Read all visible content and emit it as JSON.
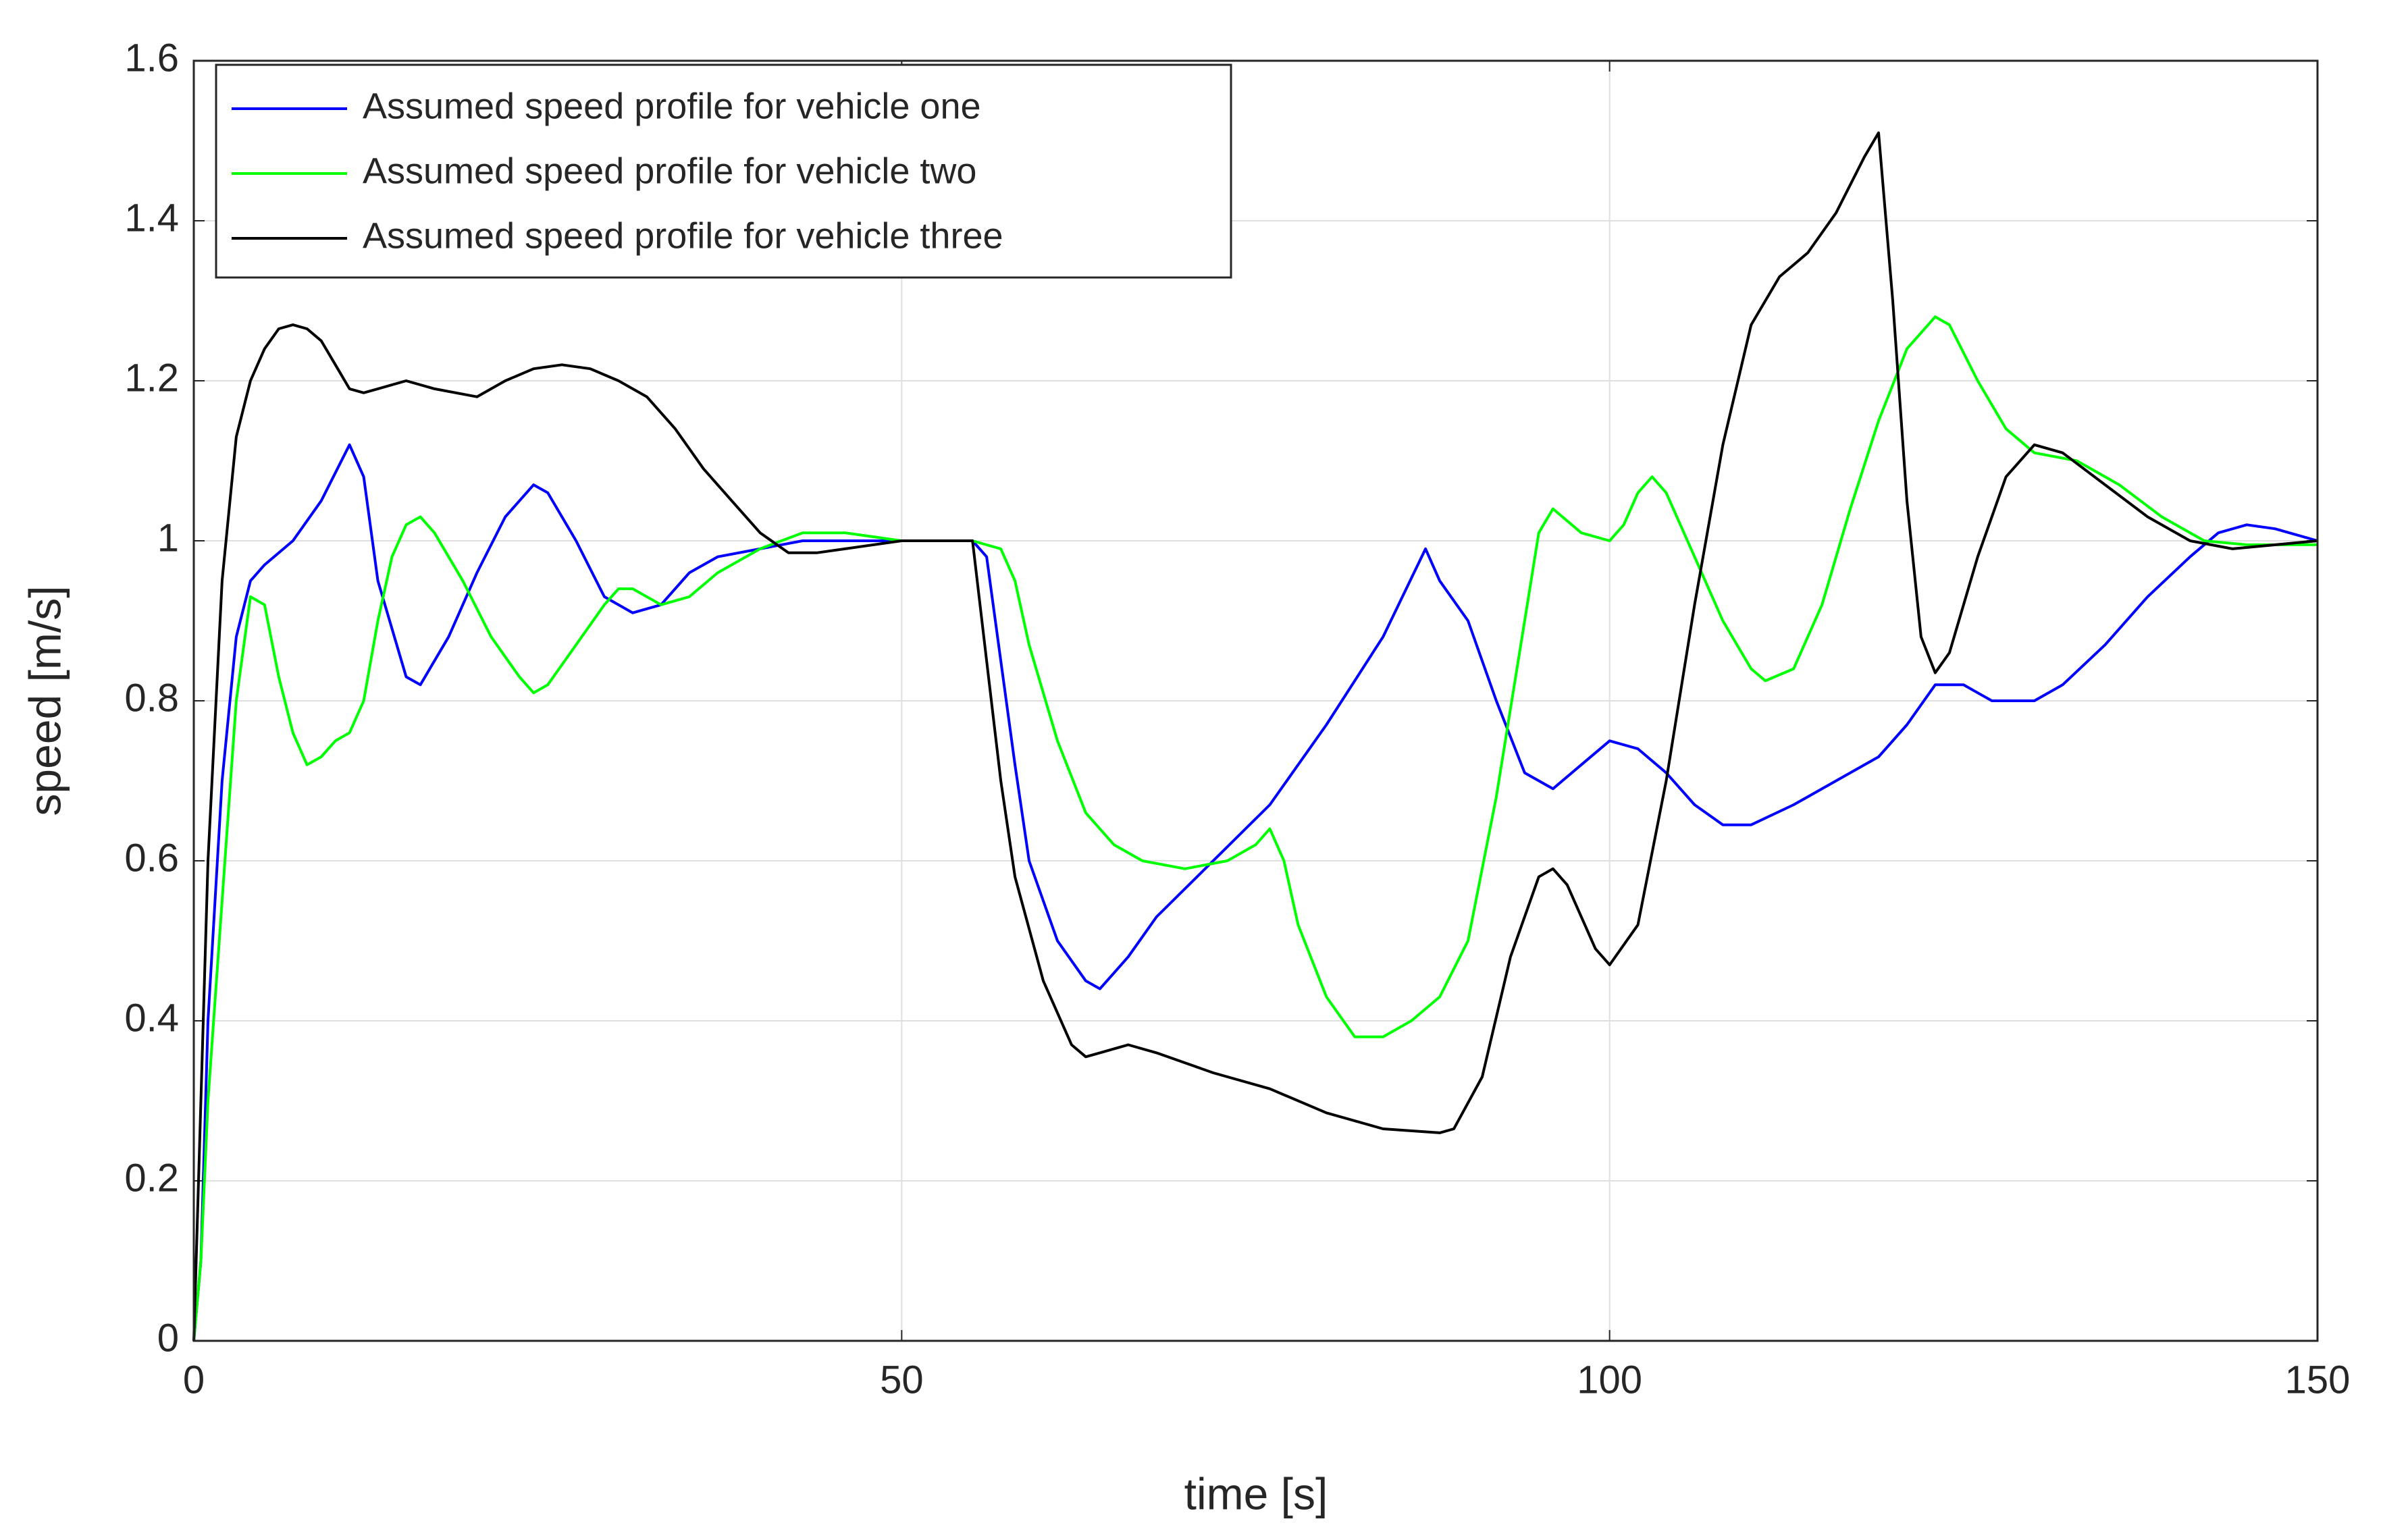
{
  "chart_data": {
    "type": "line",
    "xlabel": "time [s]",
    "ylabel": "speed [m/s]",
    "xlim": [
      0,
      150
    ],
    "ylim": [
      0,
      1.6
    ],
    "xticks": [
      0,
      50,
      100,
      150
    ],
    "yticks": [
      0,
      0.2,
      0.4,
      0.6,
      0.8,
      1,
      1.2,
      1.4,
      1.6
    ],
    "grid": true,
    "legend": "upper left",
    "series": [
      {
        "name": "Assumed speed profile for vehicle one",
        "color": "#0000ff",
        "x": [
          0,
          0.5,
          1,
          2,
          3,
          4,
          5,
          7,
          9,
          11,
          12,
          13,
          15,
          16,
          18,
          20,
          22,
          24,
          25,
          27,
          29,
          31,
          33,
          35,
          37,
          40,
          43,
          46,
          50,
          55,
          56,
          57,
          58,
          59,
          61,
          63,
          64,
          66,
          68,
          72,
          76,
          80,
          84,
          87,
          88,
          90,
          92,
          94,
          96,
          98,
          100,
          102,
          104,
          106,
          108,
          110,
          113,
          116,
          119,
          121,
          123,
          125,
          127,
          130,
          132,
          135,
          138,
          141,
          143,
          145,
          147,
          150
        ],
        "values": [
          0,
          0.1,
          0.4,
          0.7,
          0.88,
          0.95,
          0.97,
          1.0,
          1.05,
          1.12,
          1.08,
          0.95,
          0.83,
          0.82,
          0.88,
          0.96,
          1.03,
          1.07,
          1.06,
          1.0,
          0.93,
          0.91,
          0.92,
          0.96,
          0.98,
          0.99,
          1.0,
          1.0,
          1.0,
          1.0,
          0.98,
          0.85,
          0.72,
          0.6,
          0.5,
          0.45,
          0.44,
          0.48,
          0.53,
          0.6,
          0.67,
          0.77,
          0.88,
          0.99,
          0.95,
          0.9,
          0.8,
          0.71,
          0.69,
          0.72,
          0.75,
          0.74,
          0.71,
          0.67,
          0.645,
          0.645,
          0.67,
          0.7,
          0.73,
          0.77,
          0.82,
          0.82,
          0.8,
          0.8,
          0.82,
          0.87,
          0.93,
          0.98,
          1.01,
          1.02,
          1.015,
          1.0
        ]
      },
      {
        "name": "Assumed speed profile for vehicle two",
        "color": "#00ff00",
        "x": [
          0,
          0.5,
          1,
          2,
          3,
          4,
          5,
          6,
          7,
          8,
          9,
          10,
          11,
          12,
          13,
          14,
          15,
          16,
          17,
          19,
          21,
          23,
          24,
          25,
          27,
          29,
          30,
          31,
          33,
          35,
          37,
          40,
          43,
          46,
          50,
          55,
          57,
          58,
          59,
          61,
          63,
          65,
          67,
          70,
          73,
          75,
          76,
          77,
          78,
          80,
          82,
          84,
          86,
          88,
          90,
          92,
          94,
          95,
          96,
          98,
          100,
          101,
          102,
          103,
          104,
          106,
          108,
          110,
          111,
          113,
          115,
          117,
          119,
          121,
          123,
          124,
          126,
          128,
          130,
          133,
          136,
          139,
          142,
          145,
          150
        ],
        "values": [
          0,
          0.1,
          0.3,
          0.55,
          0.8,
          0.93,
          0.92,
          0.83,
          0.76,
          0.72,
          0.73,
          0.75,
          0.76,
          0.8,
          0.9,
          0.98,
          1.02,
          1.03,
          1.01,
          0.95,
          0.88,
          0.83,
          0.81,
          0.82,
          0.87,
          0.92,
          0.94,
          0.94,
          0.92,
          0.93,
          0.96,
          0.99,
          1.01,
          1.01,
          1.0,
          1.0,
          0.99,
          0.95,
          0.87,
          0.75,
          0.66,
          0.62,
          0.6,
          0.59,
          0.6,
          0.62,
          0.64,
          0.6,
          0.52,
          0.43,
          0.38,
          0.38,
          0.4,
          0.43,
          0.5,
          0.68,
          0.9,
          1.01,
          1.04,
          1.01,
          1.0,
          1.02,
          1.06,
          1.08,
          1.06,
          0.98,
          0.9,
          0.84,
          0.825,
          0.84,
          0.92,
          1.04,
          1.15,
          1.24,
          1.28,
          1.27,
          1.2,
          1.14,
          1.11,
          1.1,
          1.07,
          1.03,
          1.0,
          0.995,
          0.995
        ]
      },
      {
        "name": "Assumed speed profile for vehicle three",
        "color": "#000000",
        "x": [
          0,
          0.5,
          1,
          2,
          3,
          4,
          5,
          6,
          7,
          8,
          9,
          10,
          11,
          12,
          13,
          15,
          17,
          20,
          22,
          24,
          26,
          28,
          30,
          32,
          34,
          36,
          38,
          40,
          42,
          44,
          46,
          50,
          55,
          56,
          57,
          58,
          60,
          62,
          63,
          64,
          66,
          68,
          72,
          76,
          80,
          84,
          88,
          89,
          91,
          93,
          95,
          96,
          97,
          99,
          100,
          102,
          104,
          106,
          108,
          110,
          112,
          114,
          116,
          118,
          119,
          120,
          121,
          122,
          123,
          124,
          126,
          128,
          130,
          132,
          135,
          138,
          141,
          144,
          150
        ],
        "values": [
          0,
          0.3,
          0.6,
          0.95,
          1.13,
          1.2,
          1.24,
          1.265,
          1.27,
          1.265,
          1.25,
          1.22,
          1.19,
          1.185,
          1.19,
          1.2,
          1.19,
          1.18,
          1.2,
          1.215,
          1.22,
          1.215,
          1.2,
          1.18,
          1.14,
          1.09,
          1.05,
          1.01,
          0.985,
          0.985,
          0.99,
          1.0,
          1.0,
          0.85,
          0.7,
          0.58,
          0.45,
          0.37,
          0.355,
          0.36,
          0.37,
          0.36,
          0.335,
          0.315,
          0.285,
          0.265,
          0.26,
          0.265,
          0.33,
          0.48,
          0.58,
          0.59,
          0.57,
          0.49,
          0.47,
          0.52,
          0.7,
          0.92,
          1.12,
          1.27,
          1.33,
          1.36,
          1.41,
          1.48,
          1.51,
          1.3,
          1.05,
          0.88,
          0.835,
          0.86,
          0.98,
          1.08,
          1.12,
          1.11,
          1.07,
          1.03,
          1.0,
          0.99,
          1.0
        ]
      }
    ]
  }
}
